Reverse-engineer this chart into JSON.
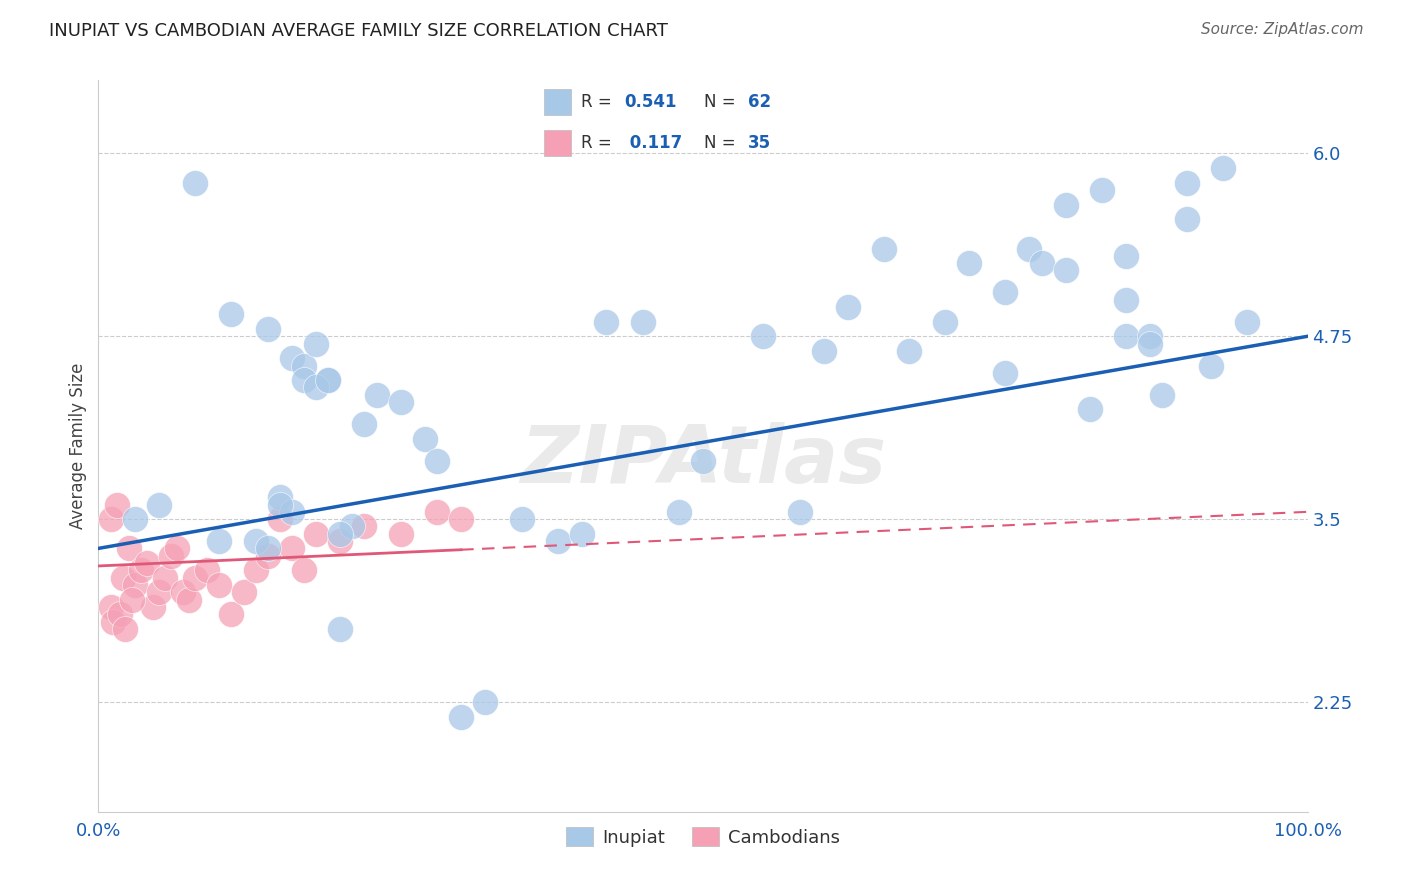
{
  "title": "INUPIAT VS CAMBODIAN AVERAGE FAMILY SIZE CORRELATION CHART",
  "source": "Source: ZipAtlas.com",
  "ylabel": "Average Family Size",
  "xlim": [
    0.0,
    100.0
  ],
  "ylim": [
    1.5,
    6.5
  ],
  "yticks": [
    2.25,
    3.5,
    4.75,
    6.0
  ],
  "inupiat_R": 0.541,
  "inupiat_N": 62,
  "cambodian_R": 0.117,
  "cambodian_N": 35,
  "inupiat_color": "#a8c8e8",
  "cambodian_color": "#f5a0b5",
  "trend_inupiat_color": "#1a5fb4",
  "trend_cambodian_color": "#e05878",
  "legend_color": "#1a5fb4",
  "background_color": "#ffffff",
  "grid_color": "#cccccc",
  "watermark": "ZIPAtlas",
  "inupiat_x": [
    3.0,
    5.0,
    8.0,
    10.0,
    11.0,
    13.0,
    14.0,
    15.0,
    15.5,
    16.0,
    16.5,
    17.0,
    18.0,
    19.0,
    20.0,
    21.0,
    22.0,
    23.5,
    25.0,
    27.0,
    28.0,
    30.0,
    32.0,
    35.0,
    38.0,
    40.0,
    42.0,
    45.0,
    50.0,
    55.0,
    58.0,
    60.0,
    62.0,
    65.0,
    67.0,
    70.0,
    72.0,
    75.0,
    77.0,
    78.0,
    80.0,
    82.0,
    83.0,
    85.0,
    87.0,
    88.0,
    90.0,
    92.0,
    93.0,
    95.0,
    85.0,
    90.0,
    75.0,
    80.0,
    70.0,
    65.0,
    62.0,
    55.0,
    50.0,
    45.0,
    40.0,
    35.0
  ],
  "inupiat_y": [
    3.5,
    3.6,
    5.8,
    3.4,
    4.9,
    3.35,
    4.8,
    3.65,
    4.6,
    3.55,
    4.55,
    4.45,
    4.7,
    4.45,
    2.75,
    3.45,
    4.15,
    4.35,
    4.3,
    4.05,
    3.9,
    2.15,
    2.25,
    3.5,
    3.35,
    3.4,
    4.85,
    4.85,
    3.9,
    4.75,
    3.55,
    4.65,
    4.95,
    5.35,
    4.65,
    4.85,
    5.25,
    5.05,
    5.35,
    5.25,
    5.65,
    4.25,
    5.75,
    4.75,
    4.75,
    4.35,
    5.55,
    4.55,
    5.9,
    4.85,
    5.2,
    5.8,
    4.5,
    4.3,
    4.45,
    5.0,
    4.7,
    4.6,
    3.45,
    4.75,
    3.3,
    3.2
  ],
  "cambodian_x": [
    1.0,
    1.5,
    2.0,
    2.5,
    3.0,
    3.5,
    4.0,
    4.5,
    5.0,
    5.5,
    6.0,
    6.5,
    7.0,
    7.5,
    8.0,
    8.5,
    9.0,
    9.5,
    10.0,
    10.5,
    11.0,
    11.5,
    12.0,
    13.0,
    14.0,
    15.0,
    16.0,
    17.0,
    18.0,
    20.0,
    22.0,
    25.0,
    28.0,
    30.0,
    32.0
  ],
  "cambodian_y": [
    3.1,
    3.3,
    3.05,
    3.15,
    3.2,
    2.9,
    3.0,
    3.1,
    3.25,
    3.3,
    3.0,
    2.95,
    3.1,
    3.2,
    3.35,
    3.0,
    3.15,
    2.85,
    3.05,
    3.1,
    2.9,
    3.2,
    3.0,
    3.15,
    3.25,
    3.5,
    3.3,
    3.15,
    3.4,
    3.35,
    3.45,
    3.4,
    3.55,
    3.5,
    3.5
  ]
}
